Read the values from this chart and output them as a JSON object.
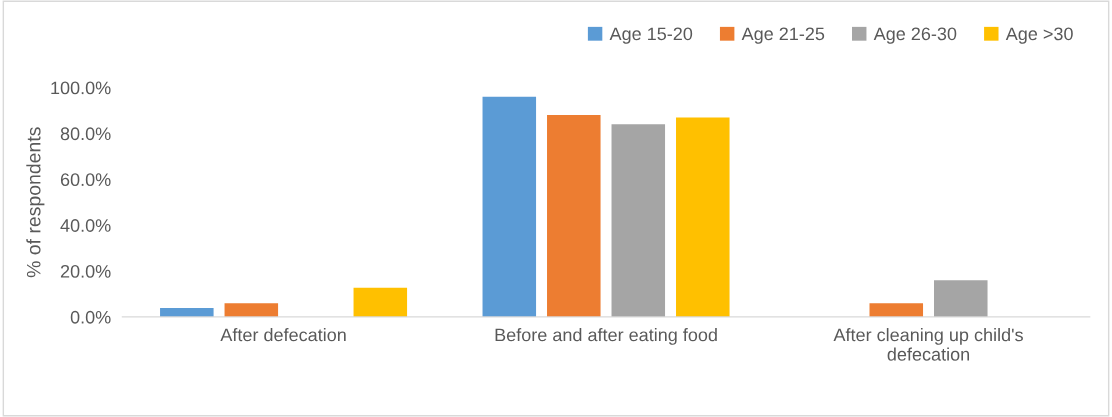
{
  "chart_data": {
    "type": "bar",
    "ylabel": "% of respondents",
    "categories": [
      "After defecation",
      "Before and after eating food",
      "After cleaning up child's\ndefecation"
    ],
    "series": [
      {
        "name": "Age 15-20",
        "color": "#5b9bd5",
        "values": [
          3.9,
          96,
          0
        ]
      },
      {
        "name": "Age 21-25",
        "color": "#ed7d31",
        "values": [
          6,
          88,
          6
        ]
      },
      {
        "name": "Age 26-30",
        "color": "#a5a5a5",
        "values": [
          0,
          84,
          16
        ]
      },
      {
        "name": "Age >30",
        "color": "#ffc000",
        "values": [
          12.7,
          87,
          0
        ]
      }
    ],
    "ylim": [
      0,
      100
    ],
    "yticks": [
      {
        "value": 0,
        "label": "0.0%"
      },
      {
        "value": 20,
        "label": "20.0%"
      },
      {
        "value": 40,
        "label": "40.0%"
      },
      {
        "value": 60,
        "label": "60.0%"
      },
      {
        "value": 80,
        "label": "80.0%"
      },
      {
        "value": 100,
        "label": "100.0%"
      }
    ],
    "grid": false,
    "legend": "top right"
  }
}
